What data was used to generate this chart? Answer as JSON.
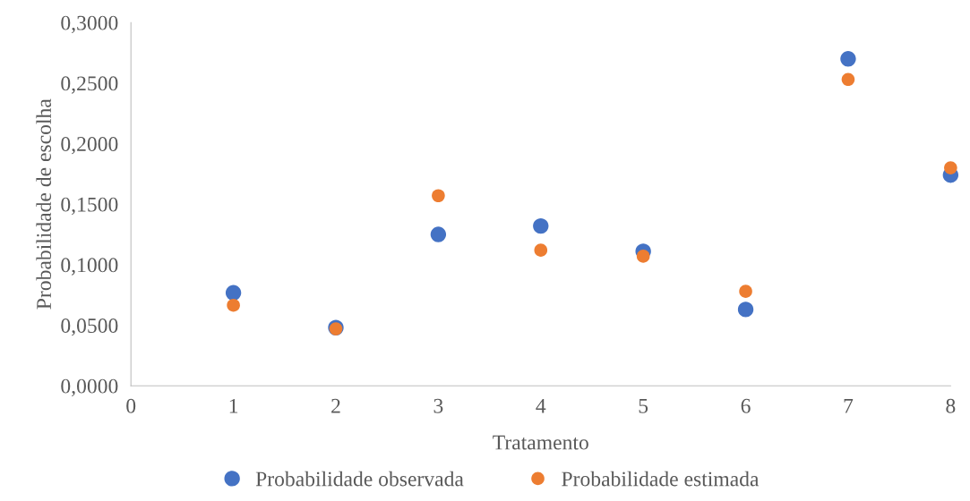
{
  "chart_data": {
    "type": "scatter",
    "xlabel": "Tratamento",
    "ylabel": "Probabilidade de escolha",
    "x": [
      1,
      2,
      3,
      4,
      5,
      6,
      7,
      8
    ],
    "series": [
      {
        "name": "Probabilidade observada",
        "color": "#4472c4",
        "values": [
          0.0768,
          0.048,
          0.125,
          0.132,
          0.111,
          0.063,
          0.27,
          0.174
        ]
      },
      {
        "name": "Probabilidade estimada",
        "color": "#ed7d31",
        "values": [
          0.0665,
          0.047,
          0.157,
          0.112,
          0.107,
          0.078,
          0.253,
          0.18
        ]
      }
    ],
    "xlim": [
      0,
      8
    ],
    "xticks": [
      0,
      1,
      2,
      3,
      4,
      5,
      6,
      7,
      8
    ],
    "ylim": [
      0,
      0.3
    ],
    "yticks": [
      {
        "value": 0,
        "label": "0,0000"
      },
      {
        "value": 0.05,
        "label": "0,0500"
      },
      {
        "value": 0.1,
        "label": "0,1000"
      },
      {
        "value": 0.15,
        "label": "0,1500"
      },
      {
        "value": 0.2,
        "label": "0,2000"
      },
      {
        "value": 0.25,
        "label": "0,2500"
      },
      {
        "value": 0.3,
        "label": "0,3000"
      }
    ],
    "grid": false,
    "legend": "bottom",
    "marker": "circle"
  }
}
